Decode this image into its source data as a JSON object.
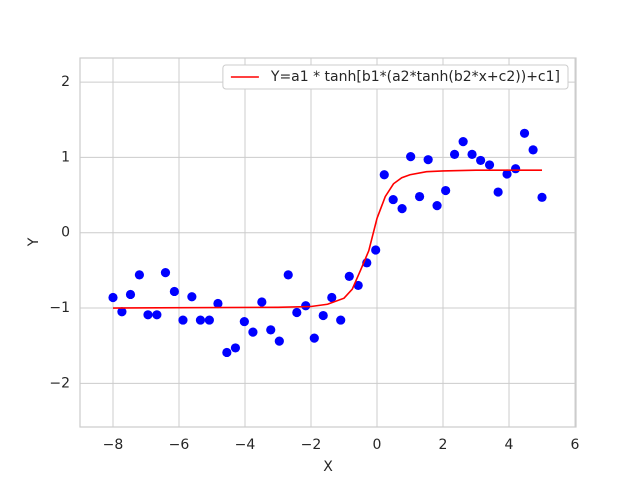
{
  "chart_data": {
    "type": "scatter",
    "xlabel": "X",
    "ylabel": "Y",
    "xlim": [
      -9,
      6.03
    ],
    "ylim": [
      -2.58,
      2.32
    ],
    "xticks": [
      {
        "value": -8,
        "label": "−8"
      },
      {
        "value": -6,
        "label": "−6"
      },
      {
        "value": -4,
        "label": "−4"
      },
      {
        "value": -2,
        "label": "−2"
      },
      0,
      2,
      4,
      6
    ],
    "yticks": [
      {
        "value": -2,
        "label": "−2"
      },
      {
        "value": -1,
        "label": "−1"
      },
      0,
      1,
      2
    ],
    "grid": true,
    "legend": "upper right",
    "series": [
      {
        "type": "scatter",
        "color": "#0000ff",
        "x": [
          -8,
          -7.73,
          -7.47,
          -7.2,
          -6.94,
          -6.67,
          -6.41,
          -6.14,
          -5.88,
          -5.61,
          -5.35,
          -5.08,
          -4.82,
          -4.55,
          -4.29,
          -4.02,
          -3.76,
          -3.49,
          -3.22,
          -2.96,
          -2.69,
          -2.43,
          -2.16,
          -1.9,
          -1.63,
          -1.37,
          -1.1,
          -0.84,
          -0.57,
          -0.31,
          -0.04,
          0.22,
          0.49,
          0.76,
          1.02,
          1.29,
          1.55,
          1.82,
          2.08,
          2.35,
          2.61,
          2.88,
          3.14,
          3.41,
          3.67,
          3.94,
          4.2,
          4.47,
          4.73,
          5
        ],
        "values": [
          -0.86,
          -1.05,
          -0.82,
          -0.56,
          -1.09,
          -1.09,
          -0.53,
          -0.78,
          -1.16,
          -0.85,
          -1.16,
          -1.16,
          -0.94,
          -1.59,
          -1.53,
          -1.18,
          -1.32,
          -0.92,
          -1.29,
          -1.44,
          -0.56,
          -1.06,
          -0.97,
          -1.4,
          -1.1,
          -0.86,
          -1.16,
          -0.58,
          -0.7,
          -0.4,
          -0.23,
          0.77,
          0.44,
          0.32,
          1.01,
          0.48,
          0.97,
          0.36,
          0.56,
          1.04,
          1.21,
          1.04,
          0.96,
          0.9,
          0.54,
          0.78,
          0.85,
          1.32,
          1.1,
          0.47
        ]
      },
      {
        "type": "line",
        "name": "Y=a1 * tanh[b1*(a2*tanh(b2*x+c2))+c1]",
        "color": "#ff0000",
        "x": [
          -8,
          -3,
          -2,
          -1.5,
          -1,
          -0.75,
          -0.5,
          -0.25,
          0,
          0.25,
          0.5,
          0.75,
          1,
          1.5,
          2,
          3,
          5
        ],
        "values": [
          -1.0,
          -0.99,
          -0.98,
          -0.95,
          -0.87,
          -0.75,
          -0.5,
          -0.24,
          0.19,
          0.48,
          0.65,
          0.73,
          0.77,
          0.81,
          0.82,
          0.83,
          0.83
        ]
      }
    ]
  }
}
